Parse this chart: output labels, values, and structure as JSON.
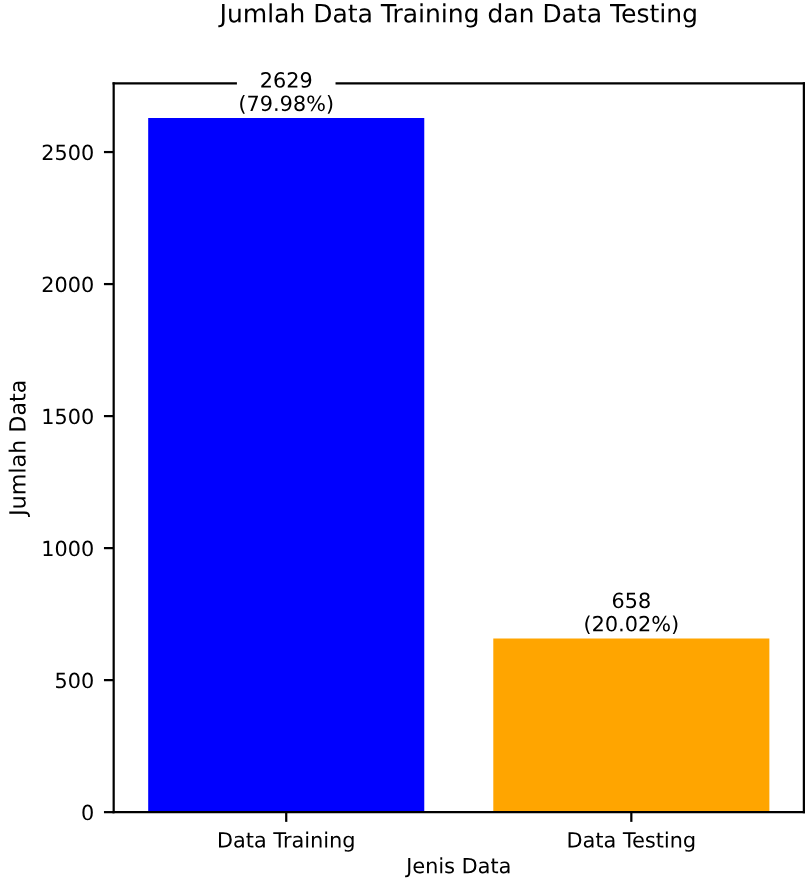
{
  "chart_data": {
    "type": "bar",
    "title": "Jumlah Data Training dan Data Testing",
    "xlabel": "Jenis Data",
    "ylabel": "Jumlah Data",
    "categories": [
      "Data Training",
      "Data Testing"
    ],
    "values": [
      2629,
      658
    ],
    "colors": [
      "#0000ff",
      "#ffa500"
    ],
    "value_labels": [
      "2629\n(79.98%)",
      "658\n(20.02%)"
    ],
    "ylim": [
      0,
      2760
    ],
    "yticks": [
      0,
      500,
      1000,
      1500,
      2000,
      2500
    ],
    "grid": false,
    "legend": false
  }
}
